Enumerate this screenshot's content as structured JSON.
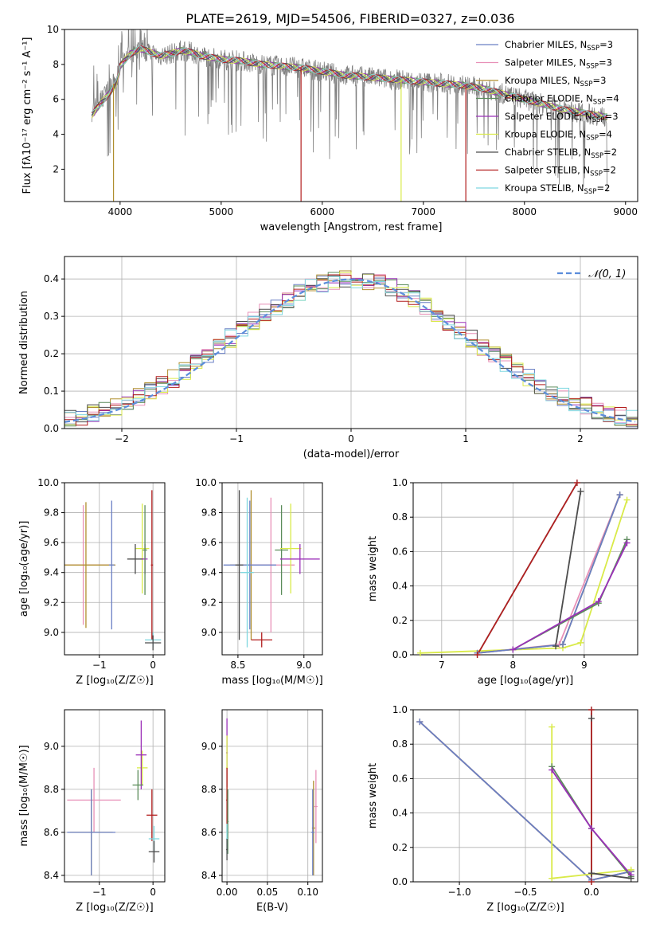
{
  "figure_title": "PLATE=2619, MJD=54506, FIBERID=0327, z=0.036",
  "models": [
    {
      "name": "Chabrier MILES",
      "nssp": "3",
      "color": "#6a7fc4"
    },
    {
      "name": "Salpeter MILES",
      "nssp": "3",
      "color": "#e891b8"
    },
    {
      "name": "Kroupa MILES",
      "nssp": "3",
      "color": "#b08f2f"
    },
    {
      "name": "Chabrier ELODIE",
      "nssp": "4",
      "color": "#5b8c5a"
    },
    {
      "name": "Salpeter ELODIE",
      "nssp": "3",
      "color": "#9b30b8"
    },
    {
      "name": "Kroupa ELODIE",
      "nssp": "4",
      "color": "#d9ea48"
    },
    {
      "name": "Chabrier STELIB",
      "nssp": "2",
      "color": "#4c4c4c"
    },
    {
      "name": "Salpeter STELIB",
      "nssp": "2",
      "color": "#b21e1e"
    },
    {
      "name": "Kroupa STELIB",
      "nssp": "2",
      "color": "#7fd8e0"
    }
  ],
  "chart_data": [
    {
      "id": "spectrum",
      "type": "line",
      "xlabel": "wavelength [Angstrom, rest frame]",
      "ylabel": "Flux [fλ10⁻¹⁷ erg cm⁻² s⁻¹ A⁻¹]",
      "xlim": [
        3450,
        9120
      ],
      "ylim": [
        0.15,
        10
      ],
      "xticks": [
        4000,
        5000,
        6000,
        7000,
        8000,
        9000
      ],
      "yticks": [
        2,
        4,
        6,
        8,
        10
      ],
      "legend_position": "top-right",
      "continuum": {
        "x": [
          3720,
          3800,
          3900,
          3960,
          4000,
          4100,
          4200,
          4300,
          4400,
          4500,
          4600,
          4700,
          4800,
          4900,
          5000,
          5200,
          5400,
          5600,
          5800,
          6000,
          6200,
          6400,
          6600,
          6800,
          7000,
          7200,
          7400,
          7600,
          7800,
          8000,
          8200,
          8400,
          8600,
          8800
        ],
        "y": [
          5.3,
          5.9,
          6.6,
          7.1,
          7.9,
          8.6,
          8.9,
          8.7,
          8.5,
          8.6,
          8.8,
          8.7,
          8.5,
          8.4,
          8.3,
          8.2,
          8.0,
          7.9,
          7.8,
          7.6,
          7.4,
          7.3,
          7.2,
          7.1,
          7.0,
          6.9,
          6.8,
          6.6,
          6.3,
          6.0,
          5.7,
          5.4,
          5.2,
          5.0
        ]
      },
      "model_dips": [
        {
          "x": 3935,
          "model": "Kroupa MILES"
        },
        {
          "x": 5790,
          "model": "Salpeter STELIB"
        },
        {
          "x": 6780,
          "model": "Kroupa ELODIE"
        },
        {
          "x": 7420,
          "model": "Salpeter STELIB"
        }
      ]
    },
    {
      "id": "residuals",
      "type": "line",
      "xlabel": "(data-model)/error",
      "ylabel": "Normed distribution",
      "xlim": [
        -2.5,
        2.5
      ],
      "ylim": [
        0,
        0.46
      ],
      "xticks": [
        -2,
        -1,
        0,
        1,
        2
      ],
      "yticks": [
        0.0,
        0.1,
        0.2,
        0.3,
        0.4
      ],
      "grid": true,
      "legend_position": "top-right",
      "reference_curve": {
        "label": "𝒩(0, 1)",
        "mean": 0,
        "sd": 1,
        "style": "dashed",
        "color": "#5b8ddb"
      }
    },
    {
      "id": "age_vs_Z",
      "type": "scatter",
      "xlabel": "Z [log₁₀(Z/Z☉)]",
      "ylabel": "age  [log₁₀(age/yr)]",
      "xlim": [
        -1.65,
        0.22
      ],
      "ylim": [
        8.85,
        10.0
      ],
      "xticks": [
        -1,
        0
      ],
      "yticks": [
        9.0,
        9.2,
        9.4,
        9.6,
        9.8,
        10.0
      ],
      "grid": true,
      "points": [
        {
          "model": "Salpeter MILES",
          "x": -1.3,
          "y": 9.45,
          "xerr": 0.5,
          "yerr": 0.4
        },
        {
          "model": "Kroupa MILES",
          "x": -1.25,
          "y": 9.45,
          "xerr": 0.55,
          "yerr": 0.42
        },
        {
          "model": "Chabrier MILES",
          "x": -0.77,
          "y": 9.45,
          "xerr": 0.05,
          "yerr": 0.43
        },
        {
          "model": "Kroupa ELODIE",
          "x": -0.2,
          "y": 9.56,
          "xerr": 0.13,
          "yerr": 0.3
        },
        {
          "model": "Chabrier STELIB",
          "x": -0.33,
          "y": 9.49,
          "xerr": 0.15,
          "yerr": 0.1
        },
        {
          "model": "Salpeter ELODIE",
          "x": -0.15,
          "y": 9.49,
          "xerr": 0.05,
          "yerr": 0.1
        },
        {
          "model": "Chabrier ELODIE",
          "x": -0.15,
          "y": 9.55,
          "xerr": 0.04,
          "yerr": 0.3
        },
        {
          "model": "Salpeter STELIB",
          "x": -0.02,
          "y": 9.45,
          "xerr": 0.02,
          "yerr": 0.5
        },
        {
          "model": "Kroupa STELIB",
          "x": 0.0,
          "y": 8.95,
          "xerr": 0.15,
          "yerr": 0.05
        },
        {
          "model": "Chabrier STELIB",
          "x": 0.0,
          "y": 8.93,
          "xerr": 0.15,
          "yerr": 0.05
        }
      ]
    },
    {
      "id": "age_vs_mass",
      "type": "scatter",
      "xlabel": "mass [log₁₀(M/M☉)]",
      "ylabel": "",
      "xlim": [
        8.38,
        9.14
      ],
      "ylim": [
        8.85,
        10.0
      ],
      "xticks": [
        8.5,
        9.0
      ],
      "yticks": [
        9.0,
        9.2,
        9.4,
        9.6,
        9.8,
        10.0
      ],
      "grid": true,
      "points": [
        {
          "model": "Kroupa MILES",
          "x": 8.6,
          "y": 9.45,
          "xerr": 0.16,
          "yerr": 0.5
        },
        {
          "model": "Salpeter MILES",
          "x": 8.75,
          "y": 9.45,
          "xerr": 0.18,
          "yerr": 0.45
        },
        {
          "model": "Chabrier MILES",
          "x": 8.59,
          "y": 9.45,
          "xerr": 0.2,
          "yerr": 0.43
        },
        {
          "model": "Chabrier ELODIE",
          "x": 8.83,
          "y": 9.55,
          "xerr": 0.05,
          "yerr": 0.3
        },
        {
          "model": "Kroupa ELODIE",
          "x": 8.9,
          "y": 9.56,
          "xerr": 0.08,
          "yerr": 0.3
        },
        {
          "model": "Salpeter ELODIE",
          "x": 8.97,
          "y": 9.49,
          "xerr": 0.15,
          "yerr": 0.1
        },
        {
          "model": "Kroupa STELIB",
          "x": 8.57,
          "y": 9.4,
          "xerr": 0.05,
          "yerr": 0.5
        },
        {
          "model": "Chabrier STELIB",
          "x": 8.51,
          "y": 9.45,
          "xerr": 0.03,
          "yerr": 0.5
        },
        {
          "model": "Salpeter STELIB",
          "x": 8.68,
          "y": 8.95,
          "xerr": 0.08,
          "yerr": 0.05
        }
      ]
    },
    {
      "id": "weight_vs_age",
      "type": "line",
      "xlabel": "age  [log₁₀(age/yr)]",
      "ylabel": "mass weight",
      "xlim": [
        6.6,
        9.75
      ],
      "ylim": [
        0,
        1
      ],
      "xticks": [
        7,
        8,
        9
      ],
      "yticks": [
        0.0,
        0.2,
        0.4,
        0.6,
        0.8,
        1.0
      ],
      "grid": true,
      "series": [
        {
          "model": "Kroupa ELODIE",
          "x": [
            6.7,
            8.7,
            8.95,
            9.6
          ],
          "y": [
            0.01,
            0.04,
            0.07,
            0.9
          ]
        },
        {
          "model": "Salpeter MILES",
          "x": [
            7.5,
            8.65,
            9.5
          ],
          "y": [
            0.01,
            0.06,
            0.93
          ]
        },
        {
          "model": "Kroupa MILES",
          "x": [
            7.5,
            8.7,
            9.5
          ],
          "y": [
            0.01,
            0.06,
            0.93
          ]
        },
        {
          "model": "Chabrier MILES",
          "x": [
            7.5,
            8.7,
            9.5
          ],
          "y": [
            0.01,
            0.06,
            0.93
          ]
        },
        {
          "model": "Chabrier STELIB",
          "x": [
            8.6,
            8.95
          ],
          "y": [
            0.05,
            0.95
          ]
        },
        {
          "model": "Kroupa STELIB",
          "x": [
            7.5,
            8.9
          ],
          "y": [
            0.0,
            1.0
          ]
        },
        {
          "model": "Salpeter STELIB",
          "x": [
            7.5,
            8.9
          ],
          "y": [
            0.0,
            1.0
          ]
        },
        {
          "model": "Chabrier ELODIE",
          "x": [
            8.0,
            9.2,
            9.6
          ],
          "y": [
            0.03,
            0.3,
            0.67
          ]
        },
        {
          "model": "Salpeter ELODIE",
          "x": [
            8.0,
            9.2,
            9.6
          ],
          "y": [
            0.03,
            0.31,
            0.65
          ]
        }
      ]
    },
    {
      "id": "mass_vs_Z",
      "type": "scatter",
      "xlabel": "Z [log₁₀(Z/Z☉)]",
      "ylabel": "mass [log₁₀(M/M☉)]",
      "xlim": [
        -1.65,
        0.22
      ],
      "ylim": [
        8.37,
        9.17
      ],
      "xticks": [
        -1,
        0
      ],
      "yticks": [
        8.4,
        8.6,
        8.8,
        9.0
      ],
      "grid": true,
      "points": [
        {
          "model": "Salpeter MILES",
          "x": -1.1,
          "y": 8.75,
          "xerr": 0.5,
          "yerr": 0.15
        },
        {
          "model": "Kroupa MILES",
          "x": -1.15,
          "y": 8.6,
          "xerr": 0.4,
          "yerr": 0.2
        },
        {
          "model": "Chabrier MILES",
          "x": -1.15,
          "y": 8.6,
          "xerr": 0.45,
          "yerr": 0.2
        },
        {
          "model": "Kroupa ELODIE",
          "x": -0.2,
          "y": 8.9,
          "xerr": 0.1,
          "yerr": 0.08
        },
        {
          "model": "Salpeter ELODIE",
          "x": -0.22,
          "y": 8.96,
          "xerr": 0.1,
          "yerr": 0.16
        },
        {
          "model": "Chabrier ELODIE",
          "x": -0.28,
          "y": 8.82,
          "xerr": 0.1,
          "yerr": 0.07
        },
        {
          "model": "Salpeter STELIB",
          "x": -0.02,
          "y": 8.68,
          "xerr": 0.1,
          "yerr": 0.12
        },
        {
          "model": "Kroupa STELIB",
          "x": 0.02,
          "y": 8.57,
          "xerr": 0.1,
          "yerr": 0.06
        },
        {
          "model": "Chabrier STELIB",
          "x": 0.02,
          "y": 8.51,
          "xerr": 0.1,
          "yerr": 0.05
        }
      ]
    },
    {
      "id": "mass_vs_ebv",
      "type": "scatter",
      "xlabel": "E(B-V)",
      "ylabel": "",
      "xlim": [
        -0.006,
        0.118
      ],
      "ylim": [
        8.37,
        9.17
      ],
      "xticks": [
        0.0,
        0.05,
        0.1
      ],
      "yticks": [
        8.4,
        8.6,
        8.8,
        9.0
      ],
      "grid": true,
      "points": [
        {
          "model": "Salpeter ELODIE",
          "x": 0.0,
          "y": 8.97,
          "xerr": 0.001,
          "yerr": 0.16
        },
        {
          "model": "Kroupa ELODIE",
          "x": 0.0,
          "y": 8.9,
          "xerr": 0.001,
          "yerr": 0.15
        },
        {
          "model": "Salpeter STELIB",
          "x": 0.0,
          "y": 8.75,
          "xerr": 0.001,
          "yerr": 0.15
        },
        {
          "model": "Chabrier ELODIE",
          "x": 0.001,
          "y": 8.65,
          "xerr": 0.001,
          "yerr": 0.15
        },
        {
          "model": "Kroupa STELIB",
          "x": 0.0,
          "y": 8.57,
          "xerr": 0.001,
          "yerr": 0.07
        },
        {
          "model": "Chabrier STELIB",
          "x": 0.0,
          "y": 8.52,
          "xerr": 0.001,
          "yerr": 0.05
        },
        {
          "model": "Salpeter MILES",
          "x": 0.11,
          "y": 8.72,
          "xerr": 0.002,
          "yerr": 0.17
        },
        {
          "model": "Kroupa MILES",
          "x": 0.107,
          "y": 8.62,
          "xerr": 0.002,
          "yerr": 0.22
        },
        {
          "model": "Chabrier MILES",
          "x": 0.106,
          "y": 8.6,
          "xerr": 0.002,
          "yerr": 0.2
        }
      ]
    },
    {
      "id": "weight_vs_Z",
      "type": "line",
      "xlabel": "Z [log₁₀(Z/Z☉)]",
      "ylabel": "mass weight",
      "xlim": [
        -1.35,
        0.35
      ],
      "ylim": [
        0,
        1
      ],
      "xticks": [
        -1.0,
        -0.5,
        0.0
      ],
      "yticks": [
        0.0,
        0.2,
        0.4,
        0.6,
        0.8,
        1.0
      ],
      "grid": true,
      "series": [
        {
          "model": "Salpeter MILES",
          "x": [
            -1.3,
            0.0,
            0.3
          ],
          "y": [
            0.93,
            0.01,
            0.06
          ]
        },
        {
          "model": "Kroupa MILES",
          "x": [
            -1.3,
            0.0,
            0.3
          ],
          "y": [
            0.93,
            0.01,
            0.06
          ]
        },
        {
          "model": "Chabrier MILES",
          "x": [
            -1.3,
            0.0,
            0.3
          ],
          "y": [
            0.93,
            0.01,
            0.06
          ]
        },
        {
          "model": "Kroupa ELODIE",
          "x": [
            -0.3,
            -0.3,
            0.3
          ],
          "y": [
            0.9,
            0.02,
            0.07
          ]
        },
        {
          "model": "Chabrier ELODIE",
          "x": [
            -0.3,
            0.0,
            0.3
          ],
          "y": [
            0.67,
            0.31,
            0.03
          ]
        },
        {
          "model": "Salpeter ELODIE",
          "x": [
            -0.3,
            0.0,
            0.3
          ],
          "y": [
            0.65,
            0.31,
            0.04
          ]
        },
        {
          "model": "Chabrier STELIB",
          "x": [
            0.0,
            0.0,
            0.3
          ],
          "y": [
            0.95,
            0.05,
            0.02
          ]
        },
        {
          "model": "Kroupa STELIB",
          "x": [
            0.0,
            0.0
          ],
          "y": [
            1.0,
            0.0
          ]
        },
        {
          "model": "Salpeter STELIB",
          "x": [
            0.0,
            0.0
          ],
          "y": [
            1.0,
            0.0
          ]
        }
      ]
    }
  ]
}
